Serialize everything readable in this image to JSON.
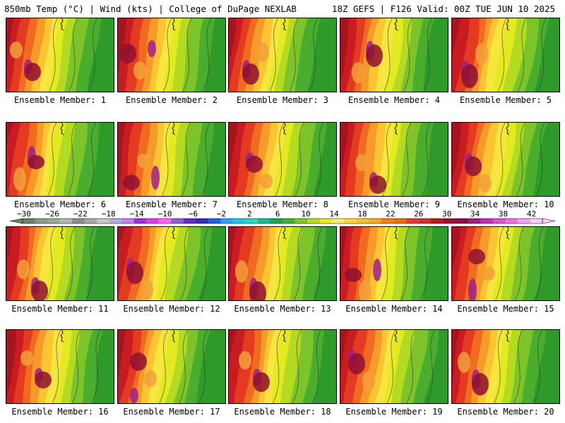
{
  "header": {
    "left": "850mb Temp (°C) | Wind (kts) | College of DuPage NEXLAB",
    "right": "18Z GEFS | F126 Valid: 00Z TUE JUN 10 2025"
  },
  "colorbar": {
    "tick_labels": [
      "−30",
      "−26",
      "−22",
      "−18",
      "−14",
      "−10",
      "−6",
      "−2",
      "2",
      "6",
      "10",
      "14",
      "18",
      "22",
      "26",
      "30",
      "34",
      "38",
      "42"
    ],
    "colors": [
      "#6f7f6f",
      "#8a9a8a",
      "#9aa89a",
      "#b0b8b0",
      "#8c8c8c",
      "#a8a8a8",
      "#c8c8c8",
      "#b0b0e0",
      "#c080f0",
      "#a030e0",
      "#e040e0",
      "#ff60ff",
      "#9060d0",
      "#6030c0",
      "#3030c0",
      "#2060e0",
      "#30a0f0",
      "#20c8e8",
      "#30d8c0",
      "#20b890",
      "#20a050",
      "#40b030",
      "#80c820",
      "#b8dc20",
      "#e6ec20",
      "#f8f070",
      "#fdd835",
      "#fbc02d",
      "#f9a825",
      "#f57f17",
      "#ef6c00",
      "#e53935",
      "#d32f2f",
      "#b71c1c",
      "#a01030",
      "#8e1040",
      "#9c2080",
      "#c030b0",
      "#e050d0",
      "#f070e0",
      "#f8a0f0",
      "#fcd0f8"
    ]
  },
  "members": [
    {
      "label": "Ensemble Member: 1"
    },
    {
      "label": "Ensemble Member: 2"
    },
    {
      "label": "Ensemble Member: 3"
    },
    {
      "label": "Ensemble Member: 4"
    },
    {
      "label": "Ensemble Member: 5"
    },
    {
      "label": "Ensemble Member: 6"
    },
    {
      "label": "Ensemble Member: 7"
    },
    {
      "label": "Ensemble Member: 8"
    },
    {
      "label": "Ensemble Member: 9"
    },
    {
      "label": "Ensemble Member: 10"
    },
    {
      "label": "Ensemble Member: 11"
    },
    {
      "label": "Ensemble Member: 12"
    },
    {
      "label": "Ensemble Member: 13"
    },
    {
      "label": "Ensemble Member: 14"
    },
    {
      "label": "Ensemble Member: 15"
    },
    {
      "label": "Ensemble Member: 16"
    },
    {
      "label": "Ensemble Member: 17"
    },
    {
      "label": "Ensemble Member: 18"
    },
    {
      "label": "Ensemble Member: 19"
    },
    {
      "label": "Ensemble Member: 20"
    }
  ]
}
